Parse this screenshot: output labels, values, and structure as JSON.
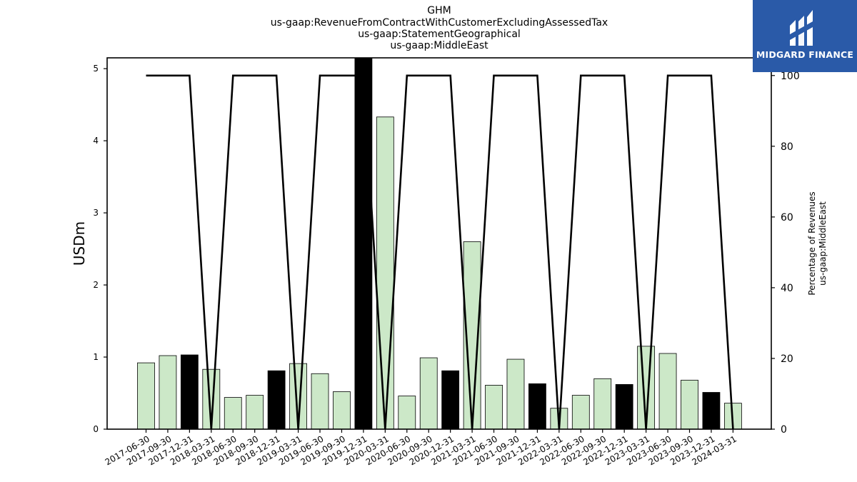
{
  "chart_data": {
    "type": "bar",
    "title_lines": [
      "GHM",
      "us-gaap:RevenueFromContractWithCustomerExcludingAssessedTax",
      "us-gaap:StatementGeographical",
      "us-gaap:MiddleEast"
    ],
    "ylabel": "USDm",
    "ylabel_right_lines": [
      "Percentage of Revenues",
      "us-gaap:MiddleEast"
    ],
    "categories": [
      "2017-06-30",
      "2017-09-30",
      "2017-12-31",
      "2018-03-31",
      "2018-06-30",
      "2018-09-30",
      "2018-12-31",
      "2019-03-31",
      "2019-06-30",
      "2019-09-30",
      "2019-12-31",
      "2020-03-31",
      "2020-06-30",
      "2020-09-30",
      "2020-12-31",
      "2021-03-31",
      "2021-06-30",
      "2021-09-30",
      "2021-12-31",
      "2022-03-31",
      "2022-06-30",
      "2022-09-30",
      "2022-12-31",
      "2023-03-31",
      "2023-06-30",
      "2023-09-30",
      "2023-12-31",
      "2024-03-31"
    ],
    "values": [
      0.92,
      1.02,
      1.03,
      0.83,
      0.44,
      0.47,
      0.81,
      0.91,
      0.77,
      0.52,
      5.15,
      4.33,
      0.46,
      0.99,
      0.81,
      2.6,
      0.61,
      0.97,
      0.63,
      0.29,
      0.47,
      0.7,
      0.62,
      1.15,
      1.05,
      0.68,
      0.51,
      0.36
    ],
    "bar_kinds": [
      "q",
      "q",
      "fy",
      "q",
      "q",
      "q",
      "fy",
      "q",
      "q",
      "q",
      "fy",
      "q",
      "q",
      "q",
      "fy",
      "q",
      "q",
      "q",
      "fy",
      "q",
      "q",
      "q",
      "fy",
      "q",
      "q",
      "q",
      "fy",
      "q"
    ],
    "series": [
      {
        "name": "Percentage of Revenues",
        "axis": "right",
        "values": [
          100,
          100,
          100,
          0,
          100,
          100,
          100,
          0,
          100,
          100,
          100,
          0,
          100,
          100,
          100,
          0,
          100,
          100,
          100,
          0,
          100,
          100,
          100,
          0,
          100,
          100,
          100,
          0
        ]
      }
    ],
    "ylim": [
      0,
      5.15
    ],
    "yticks": [
      0,
      1,
      2,
      3,
      4,
      5
    ],
    "ylim_right": [
      0,
      105
    ],
    "yticks_right": [
      0,
      20,
      40,
      60,
      80,
      100
    ],
    "colors": {
      "quarter_bar": "#cce8c8",
      "fiscal_year_bar": "#000000",
      "line": "#000000"
    },
    "grid": false,
    "legend": "none"
  },
  "logo": {
    "text": "MIDGARD FINANCE",
    "icon": "midgard-logo-icon"
  }
}
